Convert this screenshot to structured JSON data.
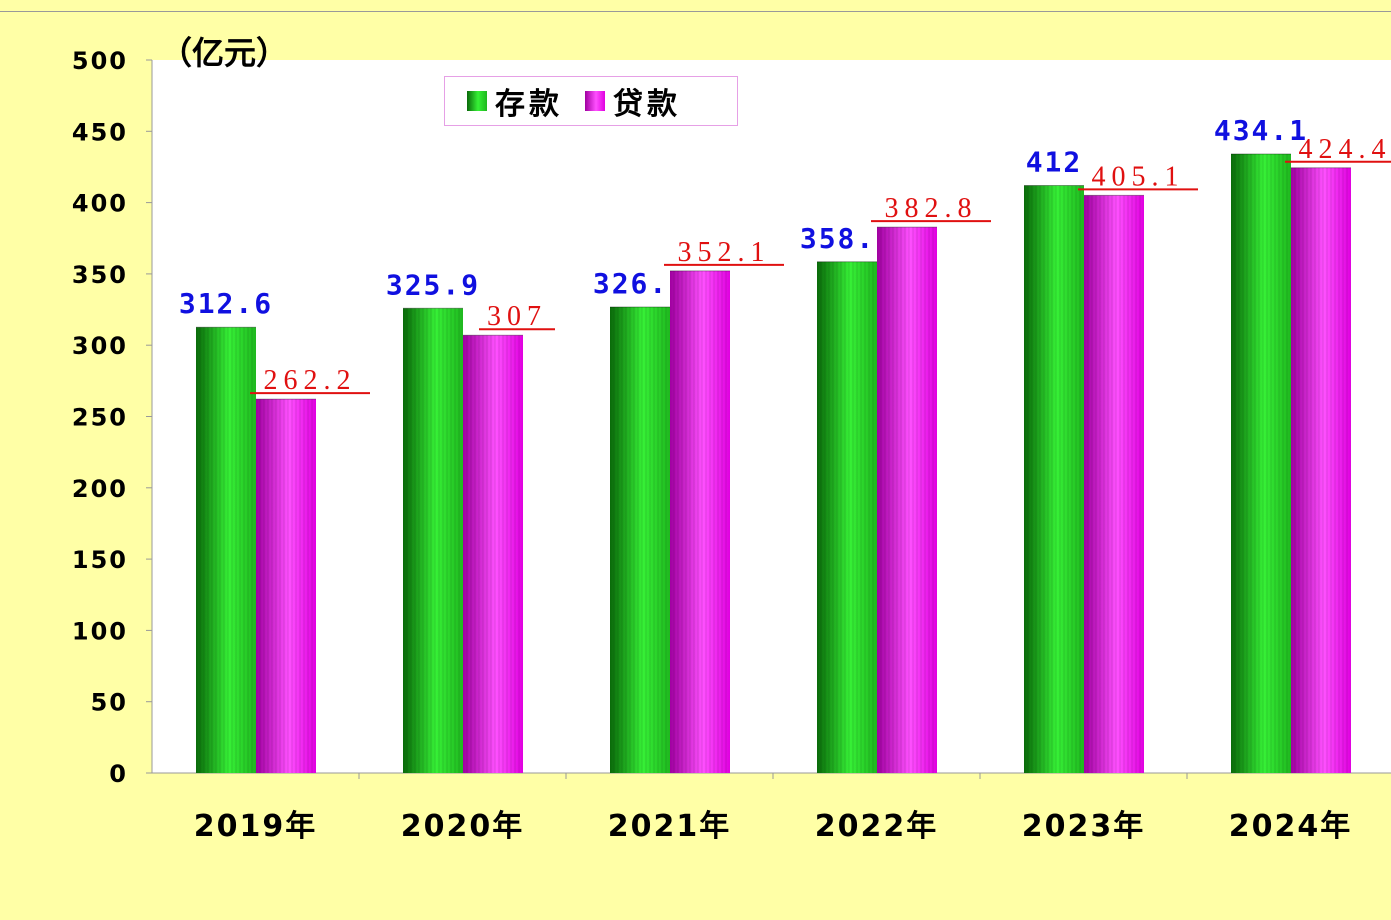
{
  "chart_data": {
    "type": "bar",
    "unit": "（亿元）",
    "categories": [
      "2019年",
      "2020年",
      "2021年",
      "2022年",
      "2023年",
      "2024年"
    ],
    "series": [
      {
        "name": "存款",
        "color": "#12C212",
        "label_color": "#1010E0",
        "values": [
          312.6,
          325.9,
          326.8,
          358.5,
          412,
          434.1
        ],
        "labels": [
          "312.6",
          "325.9",
          "326.8",
          "358.5",
          "412",
          "434.1"
        ]
      },
      {
        "name": "贷款",
        "color": "#E010E0",
        "label_color": "#E01010",
        "values": [
          262.2,
          307,
          352.1,
          382.8,
          405.1,
          424.4
        ],
        "labels": [
          "262.2",
          "307",
          "352.1",
          "382.8",
          "405.1",
          "424.4"
        ]
      }
    ],
    "ylim": [
      0,
      500
    ],
    "yticks": [
      0,
      50,
      100,
      150,
      200,
      250,
      300,
      350,
      400,
      450,
      500
    ],
    "grid": false,
    "legend_position": "top-center"
  }
}
